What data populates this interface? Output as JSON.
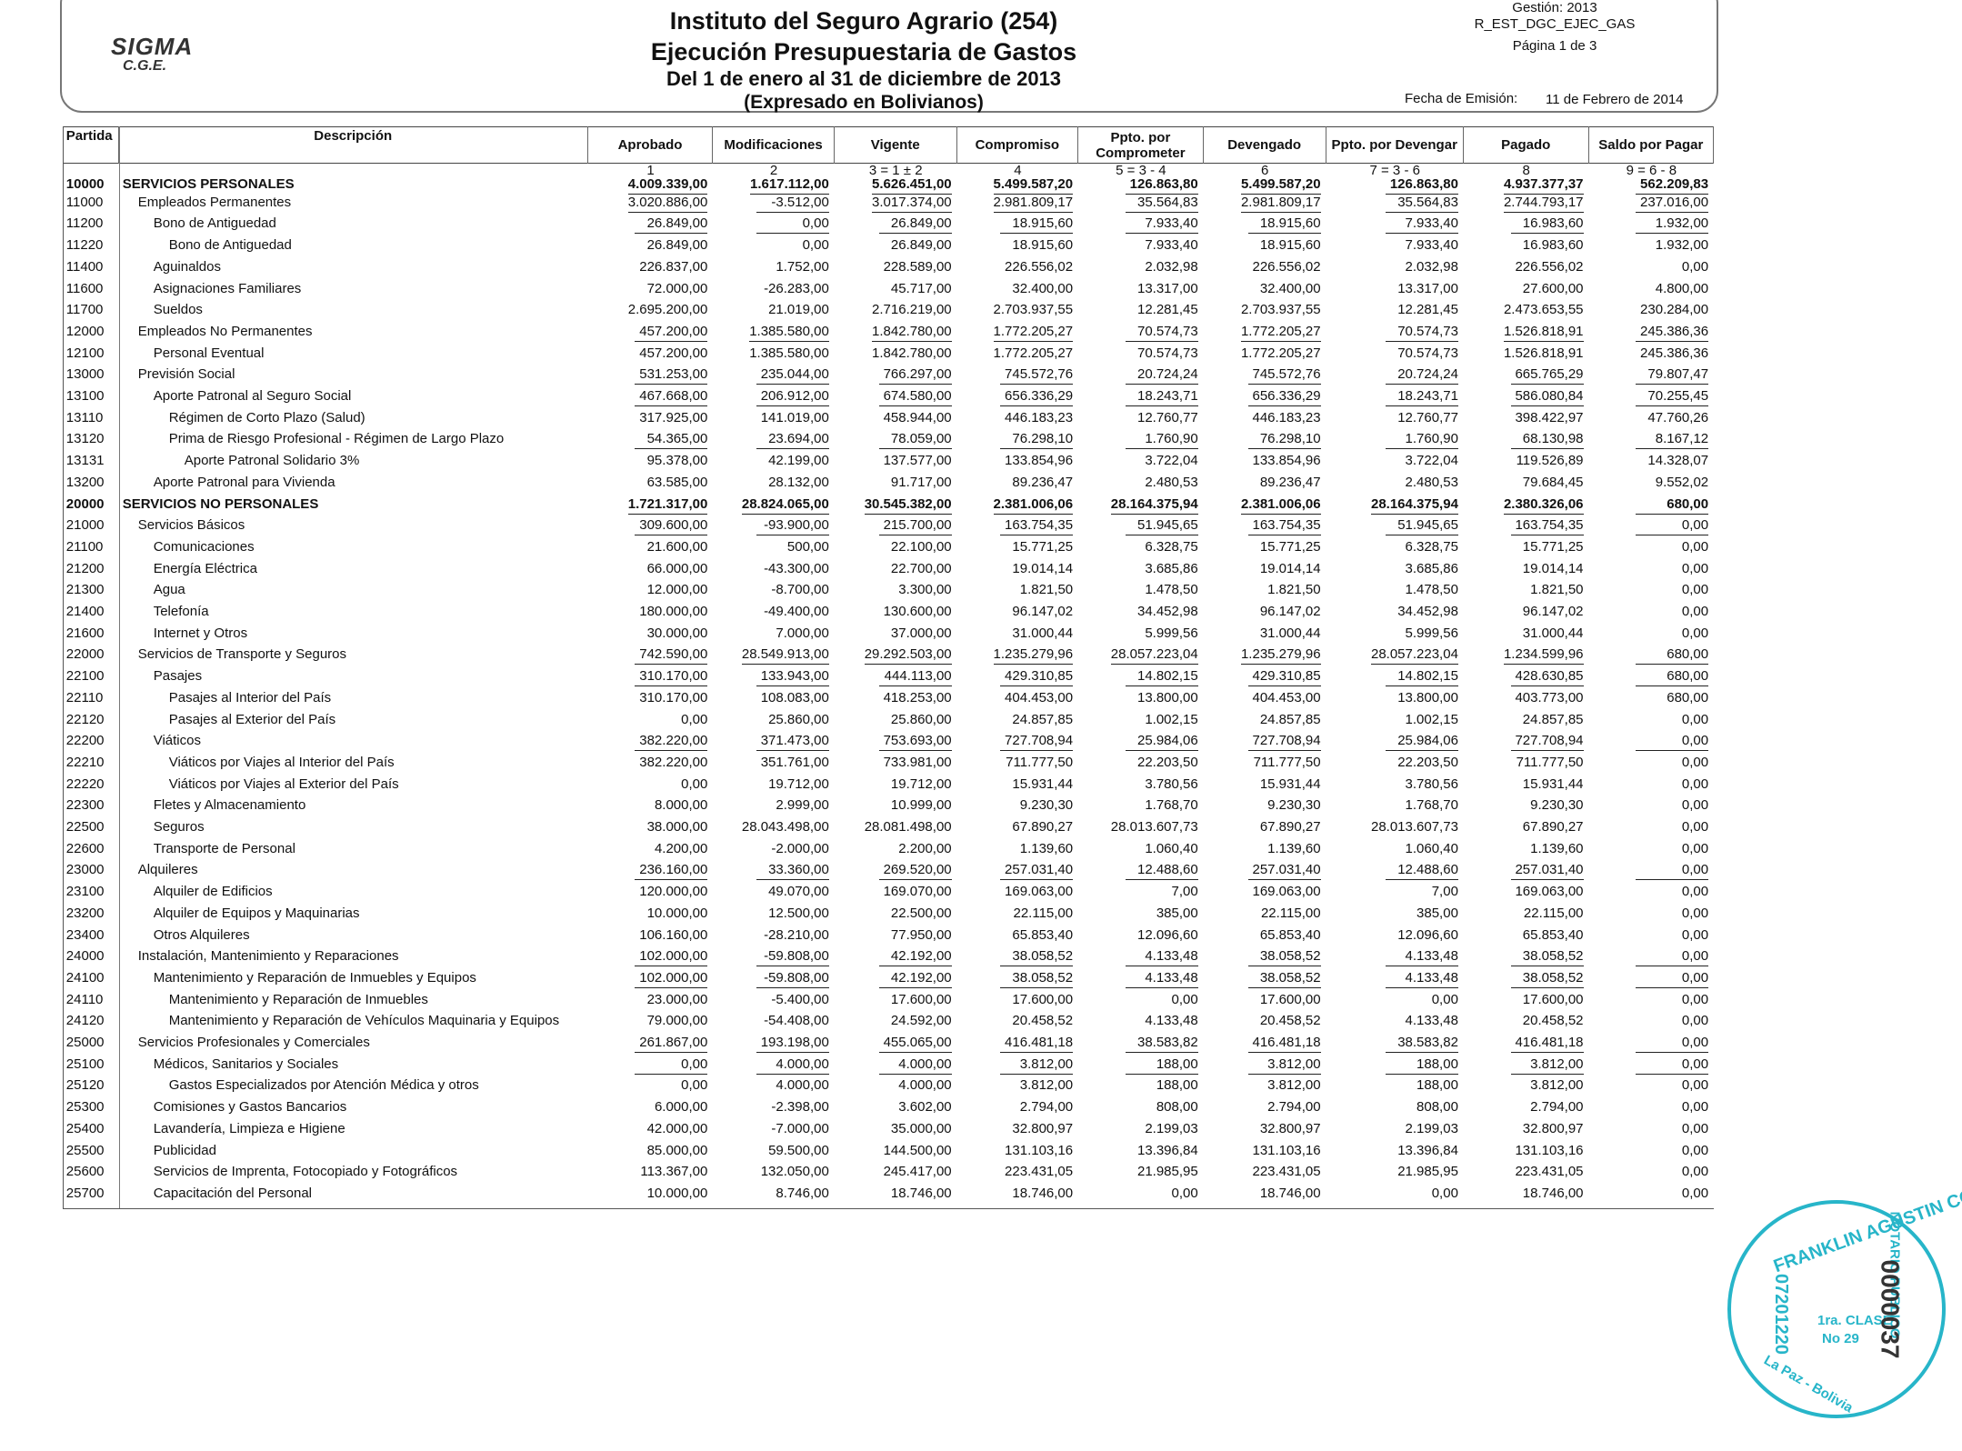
{
  "header": {
    "logo": "SIGMA",
    "logo_sub": "C.G.E.",
    "title": "Instituto del Seguro Agrario (254)",
    "subtitle": "Ejecución Presupuestaria de Gastos",
    "period": "Del 1 de enero al 31 de diciembre de 2013",
    "units": "(Expresado en Bolivianos)",
    "gestion": "Gestión: 2013",
    "report_code": "R_EST_DGC_EJEC_GAS",
    "page": "Página 1 de 3",
    "fecha_label": "Fecha de Emisión:",
    "fecha": "11 de Febrero de 2014"
  },
  "table": {
    "columns": [
      "Partida",
      "Descripción",
      "Aprobado",
      "Modificaciones",
      "Vigente",
      "Compromiso",
      "Ppto. por Comprometer",
      "Devengado",
      "Ppto. por Devengar",
      "Pagado",
      "Saldo por Pagar"
    ],
    "formulas": [
      "1",
      "2",
      "3 = 1 ± 2",
      "4",
      "5 = 3 - 4",
      "6",
      "7 = 3 - 6",
      "8",
      "9 = 6 - 8"
    ],
    "rows": [
      {
        "partida": "10000",
        "descripcion": "SERVICIOS PERSONALES",
        "values": [
          "4.009.339,00",
          "1.617.112,00",
          "5.626.451,00",
          "5.499.587,20",
          "126.863,80",
          "5.499.587,20",
          "126.863,80",
          "4.937.377,37",
          "562.209,83"
        ]
      },
      {
        "partida": "11000",
        "descripcion": "Empleados Permanentes",
        "values": [
          "3.020.886,00",
          "-3.512,00",
          "3.017.374,00",
          "2.981.809,17",
          "35.564,83",
          "2.981.809,17",
          "35.564,83",
          "2.744.793,17",
          "237.016,00"
        ]
      },
      {
        "partida": "11200",
        "descripcion": "Bono de Antiguedad",
        "values": [
          "26.849,00",
          "0,00",
          "26.849,00",
          "18.915,60",
          "7.933,40",
          "18.915,60",
          "7.933,40",
          "16.983,60",
          "1.932,00"
        ]
      },
      {
        "partida": "11220",
        "descripcion": "Bono de Antiguedad",
        "values": [
          "26.849,00",
          "0,00",
          "26.849,00",
          "18.915,60",
          "7.933,40",
          "18.915,60",
          "7.933,40",
          "16.983,60",
          "1.932,00"
        ]
      },
      {
        "partida": "11400",
        "descripcion": "Aguinaldos",
        "values": [
          "226.837,00",
          "1.752,00",
          "228.589,00",
          "226.556,02",
          "2.032,98",
          "226.556,02",
          "2.032,98",
          "226.556,02",
          "0,00"
        ]
      },
      {
        "partida": "11600",
        "descripcion": "Asignaciones Familiares",
        "values": [
          "72.000,00",
          "-26.283,00",
          "45.717,00",
          "32.400,00",
          "13.317,00",
          "32.400,00",
          "13.317,00",
          "27.600,00",
          "4.800,00"
        ]
      },
      {
        "partida": "11700",
        "descripcion": "Sueldos",
        "values": [
          "2.695.200,00",
          "21.019,00",
          "2.716.219,00",
          "2.703.937,55",
          "12.281,45",
          "2.703.937,55",
          "12.281,45",
          "2.473.653,55",
          "230.284,00"
        ]
      },
      {
        "partida": "12000",
        "descripcion": "Empleados No Permanentes",
        "values": [
          "457.200,00",
          "1.385.580,00",
          "1.842.780,00",
          "1.772.205,27",
          "70.574,73",
          "1.772.205,27",
          "70.574,73",
          "1.526.818,91",
          "245.386,36"
        ]
      },
      {
        "partida": "12100",
        "descripcion": "Personal Eventual",
        "values": [
          "457.200,00",
          "1.385.580,00",
          "1.842.780,00",
          "1.772.205,27",
          "70.574,73",
          "1.772.205,27",
          "70.574,73",
          "1.526.818,91",
          "245.386,36"
        ]
      },
      {
        "partida": "13000",
        "descripcion": "Previsión Social",
        "values": [
          "531.253,00",
          "235.044,00",
          "766.297,00",
          "745.572,76",
          "20.724,24",
          "745.572,76",
          "20.724,24",
          "665.765,29",
          "79.807,47"
        ]
      },
      {
        "partida": "13100",
        "descripcion": "Aporte Patronal al Seguro Social",
        "values": [
          "467.668,00",
          "206.912,00",
          "674.580,00",
          "656.336,29",
          "18.243,71",
          "656.336,29",
          "18.243,71",
          "586.080,84",
          "70.255,45"
        ]
      },
      {
        "partida": "13110",
        "descripcion": "Régimen de Corto Plazo (Salud)",
        "values": [
          "317.925,00",
          "141.019,00",
          "458.944,00",
          "446.183,23",
          "12.760,77",
          "446.183,23",
          "12.760,77",
          "398.422,97",
          "47.760,26"
        ]
      },
      {
        "partida": "13120",
        "descripcion": "Prima de Riesgo Profesional - Régimen de Largo Plazo",
        "values": [
          "54.365,00",
          "23.694,00",
          "78.059,00",
          "76.298,10",
          "1.760,90",
          "76.298,10",
          "1.760,90",
          "68.130,98",
          "8.167,12"
        ]
      },
      {
        "partida": "13131",
        "descripcion": "Aporte Patronal Solidario 3%",
        "values": [
          "95.378,00",
          "42.199,00",
          "137.577,00",
          "133.854,96",
          "3.722,04",
          "133.854,96",
          "3.722,04",
          "119.526,89",
          "14.328,07"
        ]
      },
      {
        "partida": "13200",
        "descripcion": "Aporte Patronal para Vivienda",
        "values": [
          "63.585,00",
          "28.132,00",
          "91.717,00",
          "89.236,47",
          "2.480,53",
          "89.236,47",
          "2.480,53",
          "79.684,45",
          "9.552,02"
        ]
      },
      {
        "partida": "20000",
        "descripcion": "SERVICIOS NO PERSONALES",
        "values": [
          "1.721.317,00",
          "28.824.065,00",
          "30.545.382,00",
          "2.381.006,06",
          "28.164.375,94",
          "2.381.006,06",
          "28.164.375,94",
          "2.380.326,06",
          "680,00"
        ]
      },
      {
        "partida": "21000",
        "descripcion": "Servicios Básicos",
        "values": [
          "309.600,00",
          "-93.900,00",
          "215.700,00",
          "163.754,35",
          "51.945,65",
          "163.754,35",
          "51.945,65",
          "163.754,35",
          "0,00"
        ]
      },
      {
        "partida": "21100",
        "descripcion": "Comunicaciones",
        "values": [
          "21.600,00",
          "500,00",
          "22.100,00",
          "15.771,25",
          "6.328,75",
          "15.771,25",
          "6.328,75",
          "15.771,25",
          "0,00"
        ]
      },
      {
        "partida": "21200",
        "descripcion": "Energía Eléctrica",
        "values": [
          "66.000,00",
          "-43.300,00",
          "22.700,00",
          "19.014,14",
          "3.685,86",
          "19.014,14",
          "3.685,86",
          "19.014,14",
          "0,00"
        ]
      },
      {
        "partida": "21300",
        "descripcion": "Agua",
        "values": [
          "12.000,00",
          "-8.700,00",
          "3.300,00",
          "1.821,50",
          "1.478,50",
          "1.821,50",
          "1.478,50",
          "1.821,50",
          "0,00"
        ]
      },
      {
        "partida": "21400",
        "descripcion": "Telefonía",
        "values": [
          "180.000,00",
          "-49.400,00",
          "130.600,00",
          "96.147,02",
          "34.452,98",
          "96.147,02",
          "34.452,98",
          "96.147,02",
          "0,00"
        ]
      },
      {
        "partida": "21600",
        "descripcion": "Internet y Otros",
        "values": [
          "30.000,00",
          "7.000,00",
          "37.000,00",
          "31.000,44",
          "5.999,56",
          "31.000,44",
          "5.999,56",
          "31.000,44",
          "0,00"
        ]
      },
      {
        "partida": "22000",
        "descripcion": "Servicios de Transporte y Seguros",
        "values": [
          "742.590,00",
          "28.549.913,00",
          "29.292.503,00",
          "1.235.279,96",
          "28.057.223,04",
          "1.235.279,96",
          "28.057.223,04",
          "1.234.599,96",
          "680,00"
        ]
      },
      {
        "partida": "22100",
        "descripcion": "Pasajes",
        "values": [
          "310.170,00",
          "133.943,00",
          "444.113,00",
          "429.310,85",
          "14.802,15",
          "429.310,85",
          "14.802,15",
          "428.630,85",
          "680,00"
        ]
      },
      {
        "partida": "22110",
        "descripcion": "Pasajes al Interior del País",
        "values": [
          "310.170,00",
          "108.083,00",
          "418.253,00",
          "404.453,00",
          "13.800,00",
          "404.453,00",
          "13.800,00",
          "403.773,00",
          "680,00"
        ]
      },
      {
        "partida": "22120",
        "descripcion": "Pasajes al Exterior del País",
        "values": [
          "0,00",
          "25.860,00",
          "25.860,00",
          "24.857,85",
          "1.002,15",
          "24.857,85",
          "1.002,15",
          "24.857,85",
          "0,00"
        ]
      },
      {
        "partida": "22200",
        "descripcion": "Viáticos",
        "values": [
          "382.220,00",
          "371.473,00",
          "753.693,00",
          "727.708,94",
          "25.984,06",
          "727.708,94",
          "25.984,06",
          "727.708,94",
          "0,00"
        ]
      },
      {
        "partida": "22210",
        "descripcion": "Viáticos por Viajes al Interior del País",
        "values": [
          "382.220,00",
          "351.761,00",
          "733.981,00",
          "711.777,50",
          "22.203,50",
          "711.777,50",
          "22.203,50",
          "711.777,50",
          "0,00"
        ]
      },
      {
        "partida": "22220",
        "descripcion": "Viáticos por Viajes al Exterior del País",
        "values": [
          "0,00",
          "19.712,00",
          "19.712,00",
          "15.931,44",
          "3.780,56",
          "15.931,44",
          "3.780,56",
          "15.931,44",
          "0,00"
        ]
      },
      {
        "partida": "22300",
        "descripcion": "Fletes y Almacenamiento",
        "values": [
          "8.000,00",
          "2.999,00",
          "10.999,00",
          "9.230,30",
          "1.768,70",
          "9.230,30",
          "1.768,70",
          "9.230,30",
          "0,00"
        ]
      },
      {
        "partida": "22500",
        "descripcion": "Seguros",
        "values": [
          "38.000,00",
          "28.043.498,00",
          "28.081.498,00",
          "67.890,27",
          "28.013.607,73",
          "67.890,27",
          "28.013.607,73",
          "67.890,27",
          "0,00"
        ]
      },
      {
        "partida": "22600",
        "descripcion": "Transporte de Personal",
        "values": [
          "4.200,00",
          "-2.000,00",
          "2.200,00",
          "1.139,60",
          "1.060,40",
          "1.139,60",
          "1.060,40",
          "1.139,60",
          "0,00"
        ]
      },
      {
        "partida": "23000",
        "descripcion": "Alquileres",
        "values": [
          "236.160,00",
          "33.360,00",
          "269.520,00",
          "257.031,40",
          "12.488,60",
          "257.031,40",
          "12.488,60",
          "257.031,40",
          "0,00"
        ]
      },
      {
        "partida": "23100",
        "descripcion": "Alquiler de Edificios",
        "values": [
          "120.000,00",
          "49.070,00",
          "169.070,00",
          "169.063,00",
          "7,00",
          "169.063,00",
          "7,00",
          "169.063,00",
          "0,00"
        ]
      },
      {
        "partida": "23200",
        "descripcion": "Alquiler de Equipos y Maquinarias",
        "values": [
          "10.000,00",
          "12.500,00",
          "22.500,00",
          "22.115,00",
          "385,00",
          "22.115,00",
          "385,00",
          "22.115,00",
          "0,00"
        ]
      },
      {
        "partida": "23400",
        "descripcion": "Otros Alquileres",
        "values": [
          "106.160,00",
          "-28.210,00",
          "77.950,00",
          "65.853,40",
          "12.096,60",
          "65.853,40",
          "12.096,60",
          "65.853,40",
          "0,00"
        ]
      },
      {
        "partida": "24000",
        "descripcion": "Instalación, Mantenimiento y Reparaciones",
        "values": [
          "102.000,00",
          "-59.808,00",
          "42.192,00",
          "38.058,52",
          "4.133,48",
          "38.058,52",
          "4.133,48",
          "38.058,52",
          "0,00"
        ]
      },
      {
        "partida": "24100",
        "descripcion": "Mantenimiento y Reparación de Inmuebles y Equipos",
        "values": [
          "102.000,00",
          "-59.808,00",
          "42.192,00",
          "38.058,52",
          "4.133,48",
          "38.058,52",
          "4.133,48",
          "38.058,52",
          "0,00"
        ]
      },
      {
        "partida": "24110",
        "descripcion": "Mantenimiento y Reparación de Inmuebles",
        "values": [
          "23.000,00",
          "-5.400,00",
          "17.600,00",
          "17.600,00",
          "0,00",
          "17.600,00",
          "0,00",
          "17.600,00",
          "0,00"
        ]
      },
      {
        "partida": "24120",
        "descripcion": "Mantenimiento y Reparación de Vehículos Maquinaria y Equipos",
        "values": [
          "79.000,00",
          "-54.408,00",
          "24.592,00",
          "20.458,52",
          "4.133,48",
          "20.458,52",
          "4.133,48",
          "20.458,52",
          "0,00"
        ]
      },
      {
        "partida": "25000",
        "descripcion": "Servicios Profesionales y Comerciales",
        "values": [
          "261.867,00",
          "193.198,00",
          "455.065,00",
          "416.481,18",
          "38.583,82",
          "416.481,18",
          "38.583,82",
          "416.481,18",
          "0,00"
        ]
      },
      {
        "partida": "25100",
        "descripcion": "Médicos, Sanitarios y Sociales",
        "values": [
          "0,00",
          "4.000,00",
          "4.000,00",
          "3.812,00",
          "188,00",
          "3.812,00",
          "188,00",
          "3.812,00",
          "0,00"
        ]
      },
      {
        "partida": "25120",
        "descripcion": "Gastos Especializados por Atención Médica y otros",
        "values": [
          "0,00",
          "4.000,00",
          "4.000,00",
          "3.812,00",
          "188,00",
          "3.812,00",
          "188,00",
          "3.812,00",
          "0,00"
        ]
      },
      {
        "partida": "25300",
        "descripcion": "Comisiones y Gastos Bancarios",
        "values": [
          "6.000,00",
          "-2.398,00",
          "3.602,00",
          "2.794,00",
          "808,00",
          "2.794,00",
          "808,00",
          "2.794,00",
          "0,00"
        ]
      },
      {
        "partida": "25400",
        "descripcion": "Lavandería, Limpieza e Higiene",
        "values": [
          "42.000,00",
          "-7.000,00",
          "35.000,00",
          "32.800,97",
          "2.199,03",
          "32.800,97",
          "2.199,03",
          "32.800,97",
          "0,00"
        ]
      },
      {
        "partida": "25500",
        "descripcion": "Publicidad",
        "values": [
          "85.000,00",
          "59.500,00",
          "144.500,00",
          "131.103,16",
          "13.396,84",
          "131.103,16",
          "13.396,84",
          "131.103,16",
          "0,00"
        ]
      },
      {
        "partida": "25600",
        "descripcion": "Servicios de Imprenta, Fotocopiado y Fotográficos",
        "values": [
          "113.367,00",
          "132.050,00",
          "245.417,00",
          "223.431,05",
          "21.985,95",
          "223.431,05",
          "21.985,95",
          "223.431,05",
          "0,00"
        ]
      },
      {
        "partida": "25700",
        "descripcion": "Capacitación del Personal",
        "values": [
          "10.000,00",
          "8.746,00",
          "18.746,00",
          "18.746,00",
          "0,00",
          "18.746,00",
          "0,00",
          "18.746,00",
          "0,00"
        ]
      }
    ]
  },
  "stamp": {
    "name": "FRANKLIN AGUSTIN CORO",
    "role": "NOTARIO PUBLICO",
    "clase": "1ra. CLASE",
    "numero": "No 29",
    "code": "07201220",
    "place": "La Paz - Bolivia",
    "folio": "0000037"
  }
}
